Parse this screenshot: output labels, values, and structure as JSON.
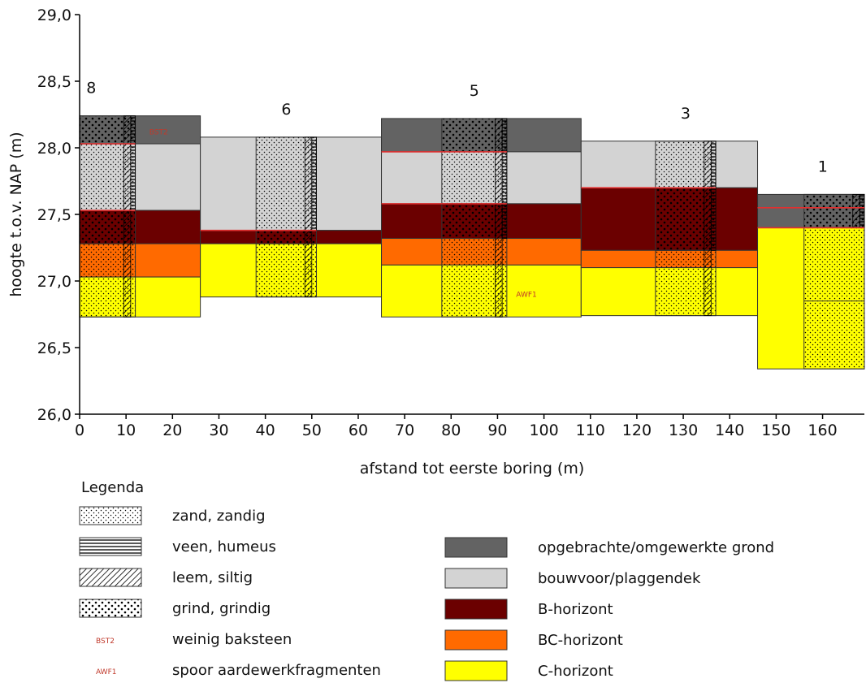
{
  "y_axis": {
    "label": "hoogte t.o.v. NAP (m)",
    "ticks": [
      "29,0",
      "28,5",
      "28,0",
      "27,5",
      "27,0",
      "26,5",
      "26,0"
    ],
    "range": [
      26.0,
      29.0
    ]
  },
  "x_axis": {
    "label": "afstand tot eerste boring (m)",
    "ticks": [
      "0",
      "10",
      "20",
      "30",
      "40",
      "50",
      "60",
      "70",
      "80",
      "90",
      "100",
      "110",
      "120",
      "130",
      "140",
      "150",
      "160"
    ],
    "range": [
      0,
      169
    ]
  },
  "colors": {
    "opgebracht": "#636363",
    "bouwvoor": "#d3d3d3",
    "b_horizont": "#6b0000",
    "bc_horizont": "#ff6a00",
    "c_horizont": "#ffff00",
    "marker_red": "#e03030"
  },
  "borings": [
    {
      "label": "8",
      "x_start": 0,
      "x_end": 26,
      "core_start": 0,
      "core_end": 12,
      "layers": [
        {
          "class": "opgebracht",
          "top": 28.24,
          "bottom": 28.03
        },
        {
          "class": "bouwvoor",
          "top": 28.03,
          "bottom": 27.53
        },
        {
          "class": "b_horizont",
          "top": 27.53,
          "bottom": 27.28
        },
        {
          "class": "bc_horizont",
          "top": 27.28,
          "bottom": 27.03
        },
        {
          "class": "c_horizont",
          "top": 27.03,
          "bottom": 26.73
        }
      ],
      "core": [
        {
          "pattern": "grind",
          "top": 28.24,
          "bottom": 28.03
        },
        {
          "pattern": "zand",
          "top": 28.03,
          "bottom": 27.53
        },
        {
          "pattern": "grind",
          "top": 27.53,
          "bottom": 27.28
        },
        {
          "pattern": "zand",
          "top": 27.28,
          "bottom": 26.73
        }
      ],
      "strip": [
        {
          "pattern": "leem",
          "top": 28.24,
          "bottom": 26.73,
          "x0": 9.5,
          "x1": 11
        },
        {
          "pattern": "veen",
          "top": 28.24,
          "bottom": 27.53,
          "x0": 11,
          "x1": 12
        }
      ],
      "red_lines": [
        28.03,
        27.53
      ],
      "marker": {
        "text": "BST2",
        "x": 15,
        "y": 28.1
      }
    },
    {
      "label": "6",
      "x_start": 26,
      "x_end": 65,
      "core_start": 38,
      "core_end": 51,
      "layers": [
        {
          "class": "bouwvoor",
          "top": 28.08,
          "bottom": 27.38
        },
        {
          "class": "b_horizont",
          "top": 27.38,
          "bottom": 27.28
        },
        {
          "class": "c_horizont",
          "top": 27.28,
          "bottom": 26.88
        }
      ],
      "core": [
        {
          "pattern": "zand",
          "top": 28.08,
          "bottom": 27.38
        },
        {
          "pattern": "grind",
          "top": 27.38,
          "bottom": 27.28
        },
        {
          "pattern": "zand",
          "top": 27.28,
          "bottom": 26.88
        }
      ],
      "strip": [
        {
          "pattern": "leem",
          "top": 28.08,
          "bottom": 26.88,
          "x0": 48.5,
          "x1": 50
        },
        {
          "pattern": "veen",
          "top": 28.08,
          "bottom": 27.38,
          "x0": 50,
          "x1": 51
        }
      ],
      "red_lines": [
        27.38
      ],
      "marker": null
    },
    {
      "label": "5",
      "x_start": 65,
      "x_end": 108,
      "core_start": 78,
      "core_end": 92,
      "layers": [
        {
          "class": "opgebracht",
          "top": 28.22,
          "bottom": 27.97
        },
        {
          "class": "bouwvoor",
          "top": 27.97,
          "bottom": 27.58
        },
        {
          "class": "b_horizont",
          "top": 27.58,
          "bottom": 27.32
        },
        {
          "class": "bc_horizont",
          "top": 27.32,
          "bottom": 27.12
        },
        {
          "class": "c_horizont",
          "top": 27.12,
          "bottom": 26.73
        }
      ],
      "core": [
        {
          "pattern": "grind",
          "top": 28.22,
          "bottom": 27.97
        },
        {
          "pattern": "zand",
          "top": 27.97,
          "bottom": 27.58
        },
        {
          "pattern": "grind",
          "top": 27.58,
          "bottom": 27.32
        },
        {
          "pattern": "zand",
          "top": 27.32,
          "bottom": 26.73
        }
      ],
      "strip": [
        {
          "pattern": "leem",
          "top": 28.22,
          "bottom": 26.73,
          "x0": 89.5,
          "x1": 91
        },
        {
          "pattern": "veen",
          "top": 28.22,
          "bottom": 27.32,
          "x0": 91,
          "x1": 92
        }
      ],
      "red_lines": [
        27.97,
        27.58
      ],
      "marker": {
        "text": "AWF1",
        "x": 94,
        "y": 26.88
      }
    },
    {
      "label": "3",
      "x_start": 108,
      "x_end": 146,
      "core_start": 124,
      "core_end": 137,
      "layers": [
        {
          "class": "bouwvoor",
          "top": 28.05,
          "bottom": 27.7
        },
        {
          "class": "b_horizont",
          "top": 27.7,
          "bottom": 27.23
        },
        {
          "class": "bc_horizont",
          "top": 27.23,
          "bottom": 27.1
        },
        {
          "class": "c_horizont",
          "top": 27.1,
          "bottom": 26.74
        }
      ],
      "core": [
        {
          "pattern": "zand",
          "top": 28.05,
          "bottom": 27.7
        },
        {
          "pattern": "grind",
          "top": 27.7,
          "bottom": 27.23
        },
        {
          "pattern": "zand",
          "top": 27.23,
          "bottom": 26.74
        }
      ],
      "strip": [
        {
          "pattern": "leem",
          "top": 28.05,
          "bottom": 26.74,
          "x0": 134.5,
          "x1": 136
        },
        {
          "pattern": "veen",
          "top": 28.05,
          "bottom": 27.23,
          "x0": 136,
          "x1": 137
        }
      ],
      "red_lines": [
        27.7
      ],
      "marker": null
    },
    {
      "label": "1",
      "x_start": 146,
      "x_end": 169,
      "core_start": 156,
      "core_end": 169,
      "layers": [
        {
          "class": "opgebracht",
          "top": 27.65,
          "bottom": 27.4
        },
        {
          "class": "c_horizont",
          "top": 27.4,
          "bottom": 26.34
        }
      ],
      "core": [
        {
          "pattern": "grind",
          "top": 27.65,
          "bottom": 27.4
        },
        {
          "pattern": "zand",
          "top": 27.4,
          "bottom": 26.34
        }
      ],
      "strip": [
        {
          "pattern": "leem",
          "top": 27.65,
          "bottom": 27.4,
          "x0": 166.5,
          "x1": 168
        },
        {
          "pattern": "veen",
          "top": 27.65,
          "bottom": 27.4,
          "x0": 168,
          "x1": 169
        }
      ],
      "red_lines": [
        27.55,
        27.4
      ],
      "inner_lines": [
        26.85
      ],
      "marker": null
    }
  ],
  "legend": {
    "title": "Legenda",
    "lithology": [
      {
        "pattern": "zand",
        "label": "zand, zandig"
      },
      {
        "pattern": "veen",
        "label": "veen, humeus"
      },
      {
        "pattern": "leem",
        "label": "leem, siltig"
      },
      {
        "pattern": "grind",
        "label": "grind, grindig"
      },
      {
        "marker": "BST2",
        "label": "weinig baksteen"
      },
      {
        "marker": "AWF1",
        "label": "spoor aardewerkfragmenten"
      }
    ],
    "horizons": [
      {
        "class": "opgebracht",
        "label": "opgebrachte/omgewerkte grond"
      },
      {
        "class": "bouwvoor",
        "label": "bouwvoor/plaggendek"
      },
      {
        "class": "b_horizont",
        "label": "B-horizont"
      },
      {
        "class": "bc_horizont",
        "label": "BC-horizont"
      },
      {
        "class": "c_horizont",
        "label": "C-horizont"
      }
    ]
  }
}
